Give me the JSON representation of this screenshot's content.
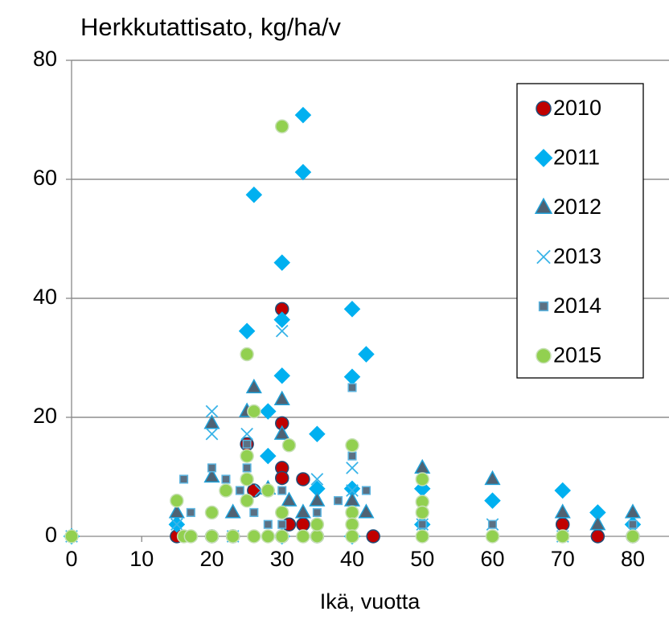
{
  "chart_data": {
    "type": "scatter",
    "title": "Herkkutattisato, kg/ha/v",
    "xlabel": "Ikä, vuotta",
    "xlim": [
      0,
      85
    ],
    "ylim": [
      0,
      80
    ],
    "xticks": [
      0,
      10,
      20,
      30,
      40,
      50,
      60,
      70,
      80
    ],
    "yticks": [
      0,
      20,
      40,
      60,
      80
    ],
    "grid": true,
    "legend": "upper right",
    "series": [
      {
        "name": "2010",
        "color": "#c00000",
        "edgecolor": "#1f4e79",
        "marker": "circle",
        "x": [
          15,
          23,
          25,
          26,
          30,
          30,
          30,
          30,
          31,
          33,
          33,
          35,
          43,
          70,
          75,
          80,
          30,
          20
        ],
        "values": [
          0,
          0,
          15.5,
          7.7,
          38.2,
          19,
          11.5,
          9.8,
          2,
          9.6,
          2,
          0,
          0,
          2,
          0,
          0,
          0,
          0
        ]
      },
      {
        "name": "2011",
        "color": "#00b0f0",
        "edgecolor": "#00b0f0",
        "marker": "diamond",
        "x": [
          15,
          25,
          26,
          28,
          28,
          30,
          30,
          30,
          33,
          33,
          35,
          35,
          40,
          40,
          40,
          42,
          50,
          50,
          60,
          70,
          75,
          80,
          30,
          40,
          0
        ],
        "values": [
          2,
          34.5,
          57.4,
          13.5,
          21,
          46,
          36.4,
          27,
          70.8,
          61.2,
          17.2,
          8,
          38.2,
          26.8,
          8,
          30.6,
          8,
          2,
          6,
          7.7,
          4,
          2,
          0,
          0,
          0
        ]
      },
      {
        "name": "2012",
        "color": "#4f6273",
        "edgecolor": "#1fa0d8",
        "marker": "triangle",
        "x": [
          15,
          20,
          20,
          23,
          25,
          26,
          30,
          30,
          31,
          35,
          40,
          42,
          50,
          60,
          70,
          75,
          80,
          28,
          33
        ],
        "values": [
          4,
          19,
          10,
          4,
          21,
          25,
          23,
          17.2,
          6,
          6,
          6,
          4,
          11.5,
          9.6,
          4,
          2,
          4,
          8,
          4
        ]
      },
      {
        "name": "2013",
        "color": "#3ab4e8",
        "edgecolor": "#3ab4e8",
        "marker": "x",
        "x": [
          20,
          20,
          15,
          25,
          30,
          35,
          40,
          40,
          23,
          50,
          60,
          70,
          27,
          0
        ],
        "values": [
          21,
          17.2,
          2,
          17.2,
          34.5,
          9.6,
          11.5,
          7.7,
          0,
          2,
          2,
          0,
          7.7,
          0
        ]
      },
      {
        "name": "2014",
        "color": "#5b7083",
        "edgecolor": "#5bb4e0",
        "marker": "square",
        "x": [
          16,
          17,
          20,
          22,
          24,
          25,
          25,
          26,
          28,
          30,
          30,
          35,
          35,
          40,
          40,
          42,
          50,
          60,
          80,
          38
        ],
        "values": [
          9.6,
          4,
          11.5,
          9.6,
          7.7,
          15.5,
          11.5,
          4,
          2,
          7.7,
          2,
          4,
          2,
          25,
          13.5,
          7.7,
          2,
          2,
          2,
          6
        ]
      },
      {
        "name": "2015",
        "color": "#92d050",
        "edgecolor": "#c6e0b4",
        "marker": "circle",
        "x": [
          0,
          15,
          16,
          17,
          20,
          22,
          23,
          25,
          25,
          25,
          25,
          26,
          26,
          28,
          28,
          30,
          30,
          30,
          31,
          33,
          35,
          40,
          40,
          40,
          40,
          50,
          50,
          50,
          50,
          60,
          70,
          80,
          20,
          35
        ],
        "values": [
          0,
          6,
          0,
          0,
          4,
          7.7,
          0,
          30.6,
          13.5,
          9.6,
          6,
          21,
          0,
          7.7,
          0,
          68.9,
          4,
          0,
          15.3,
          0,
          0,
          15.3,
          4,
          2,
          0,
          9.6,
          5.8,
          4,
          0,
          0,
          0,
          0,
          0,
          2
        ]
      }
    ]
  }
}
